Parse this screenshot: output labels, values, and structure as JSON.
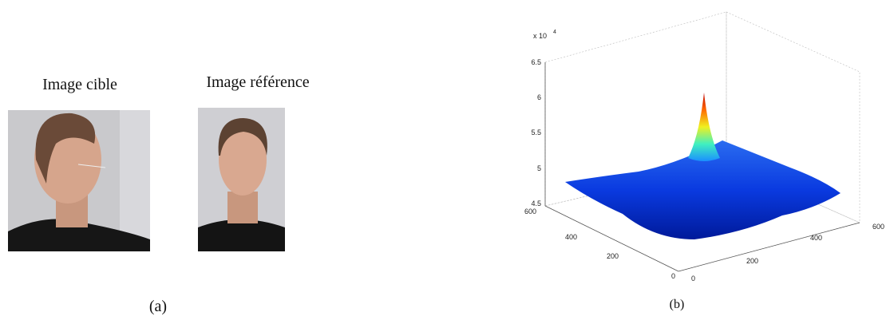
{
  "panel_a": {
    "left_title": "Image cible",
    "right_title": "Image référence",
    "label": "(a)"
  },
  "panel_b": {
    "label": "(b)",
    "z_multiplier": "x 10",
    "z_exponent": "4",
    "z_ticks": [
      "4.5",
      "5",
      "5.5",
      "6",
      "6.5"
    ],
    "y_ticks": [
      "0",
      "200",
      "400",
      "600"
    ],
    "x_ticks": [
      "0",
      "200",
      "400",
      "600"
    ]
  }
}
